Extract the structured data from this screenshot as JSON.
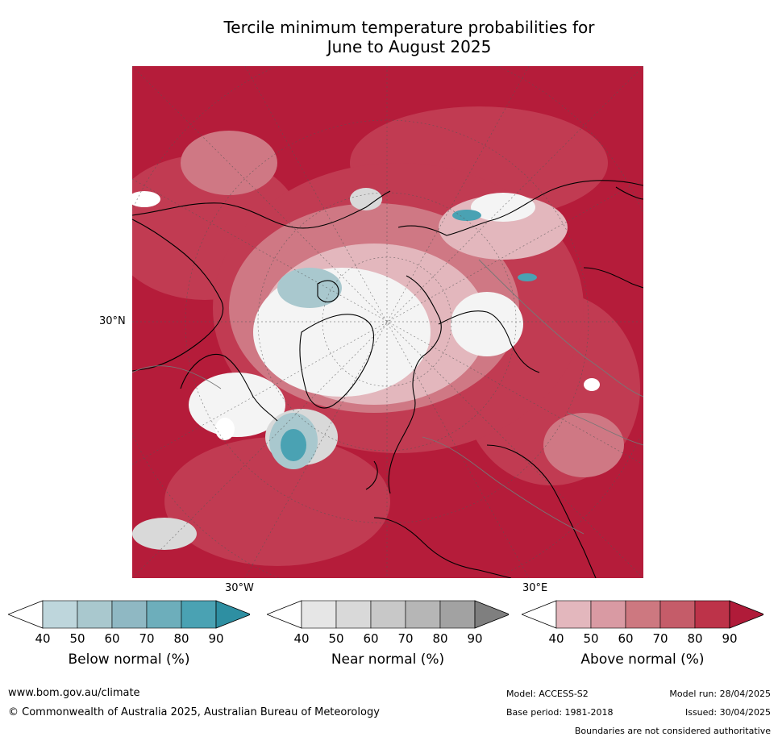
{
  "title": {
    "line1": "Tercile minimum temperature probabilities for",
    "line2": "June to August 2025"
  },
  "map": {
    "lat_label": "30°N",
    "lon_labels": {
      "left": "30°W",
      "right": "30°E"
    }
  },
  "colorbars": [
    {
      "label": "Below normal (%)",
      "ticks": [
        "40",
        "50",
        "60",
        "70",
        "80",
        "90"
      ],
      "colors": [
        "#bed6dc",
        "#a9c8ce",
        "#8fb8c3",
        "#6daebb",
        "#4aa2b3",
        "#2e8fa2"
      ],
      "under": "#ffffff",
      "over": "#2e8fa2"
    },
    {
      "label": "Near normal (%)",
      "ticks": [
        "40",
        "50",
        "60",
        "70",
        "80",
        "90"
      ],
      "colors": [
        "#e6e6e6",
        "#d9d9d9",
        "#c8c8c8",
        "#b6b6b6",
        "#a2a2a2",
        "#7f7f7f"
      ],
      "under": "#ffffff",
      "over": "#7f7f7f"
    },
    {
      "label": "Above normal (%)",
      "ticks": [
        "40",
        "50",
        "60",
        "70",
        "80",
        "90"
      ],
      "colors": [
        "#e3b7bd",
        "#d99aa3",
        "#cd7880",
        "#c55c69",
        "#bd3349",
        "#b01b39"
      ],
      "under": "#ffffff",
      "over": "#b01b39"
    }
  ],
  "footer": {
    "website": "www.bom.gov.au/climate",
    "copyright": "© Commonwealth of Australia 2025, Australian Bureau of Meteorology",
    "model": "Model: ACCESS-S2",
    "model_run": "Model run: 28/04/2025",
    "base_period": "Base period: 1981-2018",
    "issued": "Issued: 30/04/2025",
    "disclaimer": "Boundaries are not considered authoritative"
  }
}
